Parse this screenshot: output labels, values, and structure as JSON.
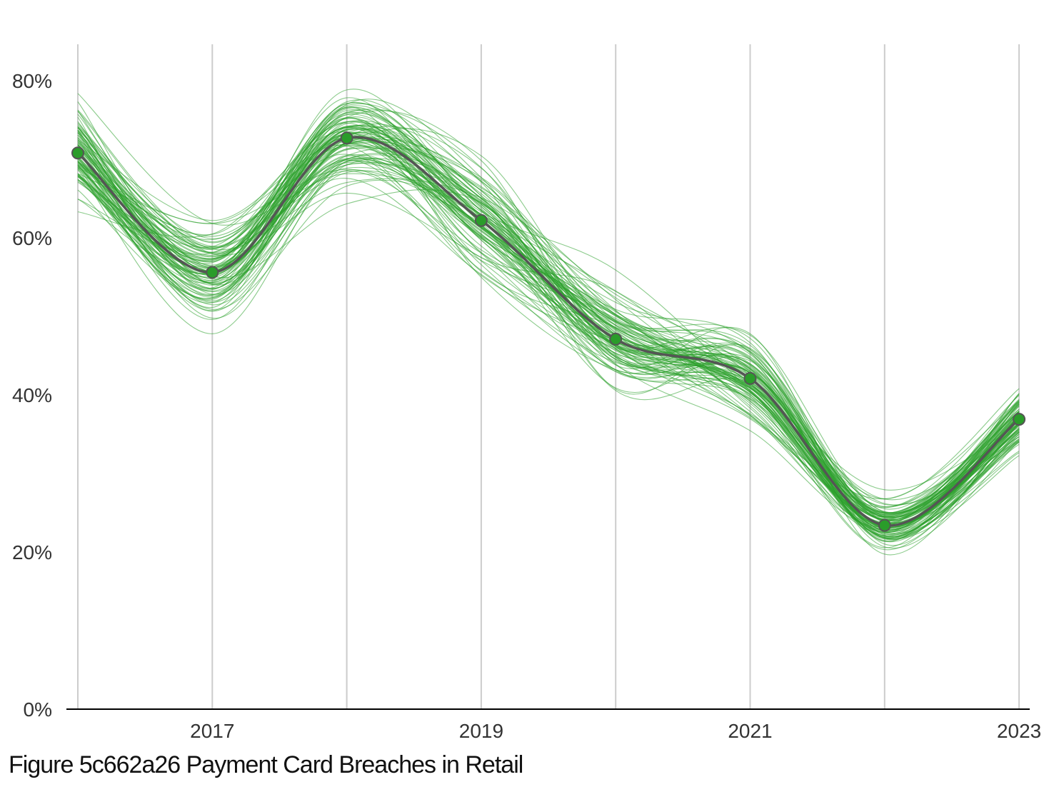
{
  "caption": "Figure 5c662a26 Payment Card Breaches in Retail",
  "colors": {
    "background": "#ffffff",
    "ensemble_line": "#2ca02c",
    "mean_line": "#555555",
    "point_fill": "#2a9c2a",
    "point_stroke": "#555555",
    "gridline": "#cccccc",
    "axis": "#000000",
    "text": "#333333"
  },
  "chart_data": {
    "type": "line",
    "title": "",
    "xlabel": "",
    "ylabel": "",
    "x": [
      2016,
      2017,
      2018,
      2019,
      2020,
      2021,
      2022,
      2023
    ],
    "x_tick_values": [
      2017,
      2019,
      2021,
      2023
    ],
    "x_tick_labels": [
      "2017",
      "2019",
      "2021",
      "2023"
    ],
    "xlim": [
      2015.93,
      2023.1
    ],
    "ylim": [
      0,
      0.85
    ],
    "y_tick_values": [
      0,
      0.2,
      0.4,
      0.6,
      0.8
    ],
    "y_tick_labels": [
      "0%",
      "20%",
      "40%",
      "60%",
      "80%"
    ],
    "grid": "vertical",
    "legend": "none",
    "series": [
      {
        "role": "mean",
        "values": [
          0.708,
          0.556,
          0.727,
          0.622,
          0.471,
          0.421,
          0.234,
          0.369
        ],
        "markers": true
      }
    ],
    "ensemble": {
      "count": 100,
      "style": "thin translucent green lines around the mean",
      "spread_by_year": [
        0.05,
        0.055,
        0.05,
        0.055,
        0.05,
        0.05,
        0.03,
        0.035
      ]
    }
  }
}
